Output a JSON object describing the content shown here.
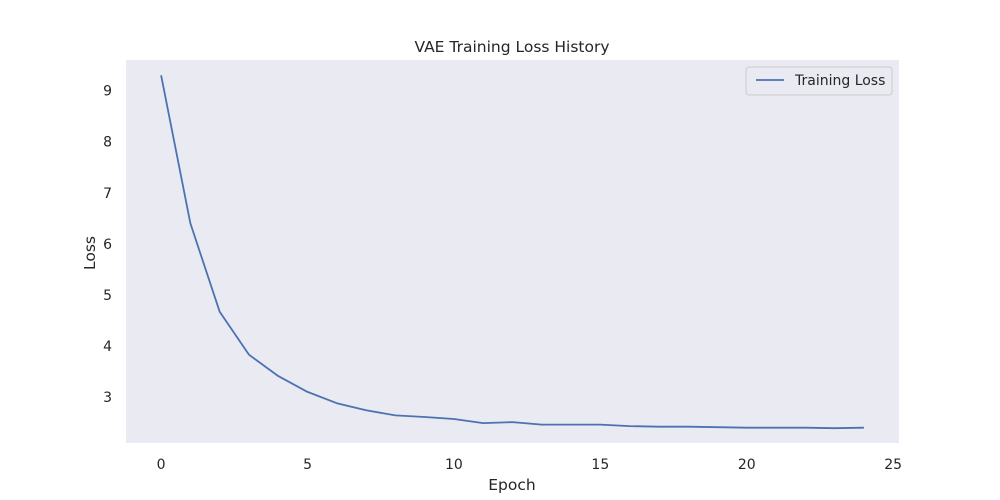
{
  "chart_data": {
    "type": "line",
    "title": "VAE Training Loss History",
    "xlabel": "Epoch",
    "ylabel": "Loss",
    "xlim": [
      -1.2,
      25.2
    ],
    "ylim": [
      2.1,
      9.6
    ],
    "xticks": [
      0,
      5,
      10,
      15,
      20,
      25
    ],
    "yticks": [
      3,
      4,
      5,
      6,
      7,
      8,
      9
    ],
    "grid": false,
    "legend_position": "top-right",
    "background_color": "#eaeaf2",
    "series": [
      {
        "name": "Training Loss",
        "color": "#4c72b0",
        "x": [
          0,
          1,
          2,
          3,
          4,
          5,
          6,
          7,
          8,
          9,
          10,
          11,
          12,
          13,
          14,
          15,
          16,
          17,
          18,
          19,
          20,
          21,
          22,
          23,
          24
        ],
        "y": [
          9.3,
          6.4,
          4.67,
          3.83,
          3.41,
          3.1,
          2.88,
          2.74,
          2.64,
          2.61,
          2.57,
          2.49,
          2.51,
          2.46,
          2.46,
          2.46,
          2.43,
          2.42,
          2.42,
          2.41,
          2.4,
          2.4,
          2.4,
          2.39,
          2.4
        ]
      }
    ]
  }
}
